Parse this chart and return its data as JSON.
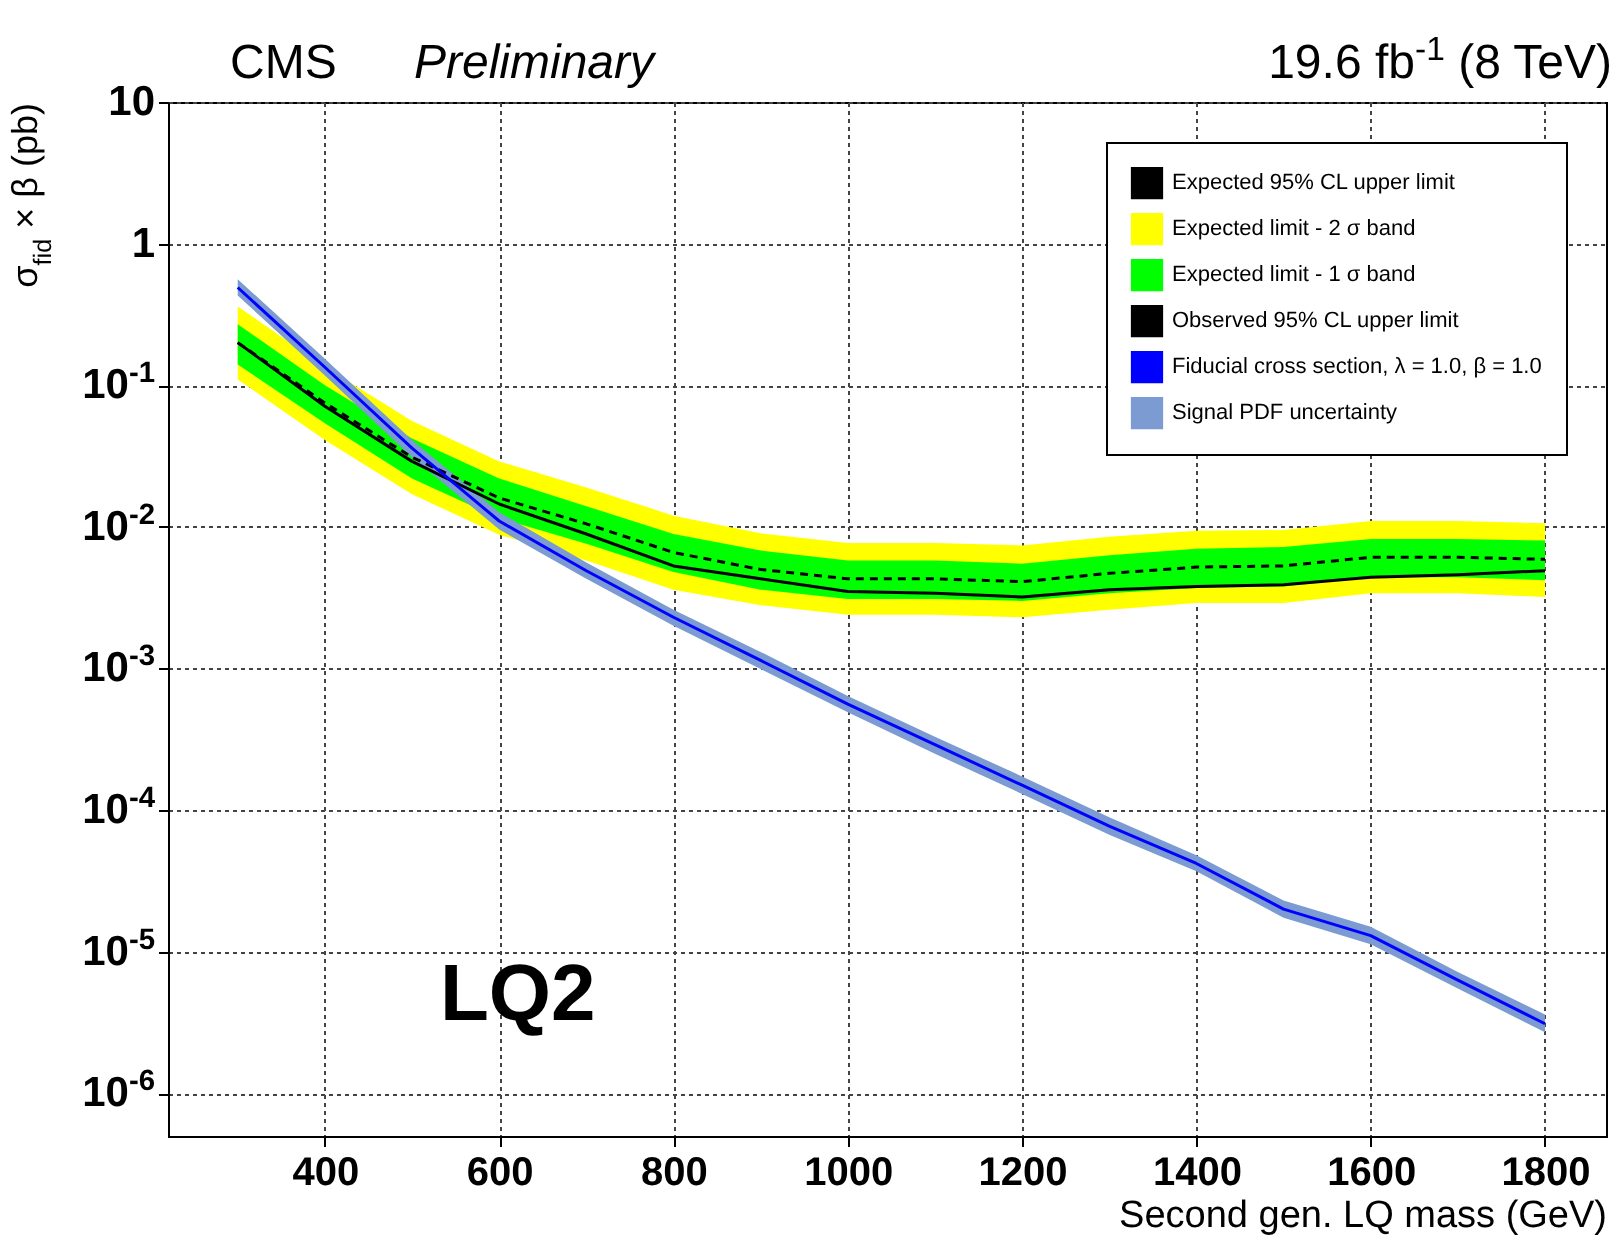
{
  "chart_data": {
    "type": "line",
    "title": "CMS",
    "xlabel": "Second gen. LQ mass (GeV)",
    "ylabel": "σ$_{fid}$ × β (pb)",
    "annotations": [
      "Preliminary",
      "19.6 fb$^{-1}$ (8 TeV)",
      "LQ2"
    ],
    "x": [
      300,
      400,
      500,
      600,
      700,
      800,
      900,
      1000,
      1100,
      1200,
      1300,
      1400,
      1500,
      1600,
      1700,
      1800
    ],
    "series": [
      {
        "name": "Expected 95% CL upper limit",
        "line_style": "dashed",
        "color": "#000000",
        "values": [
          0.2,
          0.075,
          0.031,
          0.016,
          0.0105,
          0.0066,
          0.005,
          0.0043,
          0.0043,
          0.0041,
          0.0047,
          0.0052,
          0.0053,
          0.0061,
          0.0061,
          0.0059
        ]
      },
      {
        "name": "Expected limit - 2 σ band",
        "color": "#ffff00",
        "values": [
          null,
          null,
          null,
          null,
          null,
          null,
          null,
          null,
          null,
          null,
          null,
          null,
          null,
          null,
          null,
          null
        ],
        "upper": [
          0.36,
          0.135,
          0.056,
          0.029,
          0.019,
          0.012,
          0.009,
          0.0077,
          0.0077,
          0.0074,
          0.0085,
          0.0094,
          0.0095,
          0.011,
          0.011,
          0.0106
        ],
        "lower": [
          0.11,
          0.041,
          0.017,
          0.0088,
          0.0058,
          0.0036,
          0.0028,
          0.0024,
          0.0024,
          0.0023,
          0.0026,
          0.0029,
          0.0029,
          0.0034,
          0.0034,
          0.0032
        ]
      },
      {
        "name": "Expected limit - 1 σ band",
        "color": "#00ff00",
        "values": [
          null,
          null,
          null,
          null,
          null,
          null,
          null,
          null,
          null,
          null,
          null,
          null,
          null,
          null,
          null,
          null
        ],
        "upper": [
          0.27,
          0.1,
          0.042,
          0.022,
          0.014,
          0.0089,
          0.0068,
          0.0058,
          0.0058,
          0.0055,
          0.0063,
          0.007,
          0.0072,
          0.0082,
          0.0082,
          0.008
        ],
        "lower": [
          0.14,
          0.054,
          0.022,
          0.0115,
          0.0076,
          0.0048,
          0.0036,
          0.0031,
          0.0031,
          0.003,
          0.0034,
          0.0037,
          0.0038,
          0.0044,
          0.0044,
          0.0042
        ]
      },
      {
        "name": "Observed 95% CL upper limit",
        "line_style": "solid",
        "color": "#000000",
        "values": [
          0.2,
          0.071,
          0.029,
          0.0145,
          0.0089,
          0.0053,
          0.0043,
          0.0035,
          0.0034,
          0.0032,
          0.0036,
          0.0038,
          0.0039,
          0.0044,
          0.0046,
          0.0049
        ]
      },
      {
        "name": "Fiducial cross section, λ = 1.0, β = 1.0",
        "line_style": "solid",
        "color": "#0000ff",
        "values": [
          0.49,
          0.134,
          0.036,
          0.011,
          0.0049,
          0.0023,
          0.00114,
          0.00056,
          0.00029,
          0.00015,
          7.7e-05,
          4.2e-05,
          2e-05,
          1.3e-05,
          6.3e-06,
          3.1e-06
        ]
      },
      {
        "name": "Signal PDF uncertainty",
        "color": "#7b9bd2",
        "values": [
          null,
          null,
          null,
          null,
          null,
          null,
          null,
          null,
          null,
          null,
          null,
          null,
          null,
          null,
          null,
          null
        ],
        "upper": [
          0.56,
          0.154,
          0.041,
          0.0127,
          0.0056,
          0.0026,
          0.00131,
          0.00064,
          0.00033,
          0.000173,
          8.9e-05,
          4.8e-05,
          2.3e-05,
          1.5e-05,
          7.2e-06,
          3.6e-06
        ],
        "lower": [
          0.43,
          0.117,
          0.031,
          0.0096,
          0.0043,
          0.002,
          0.00099,
          0.00049,
          0.00025,
          0.00013,
          6.7e-05,
          3.7e-05,
          1.74e-05,
          1.13e-05,
          5.5e-06,
          2.7e-06
        ]
      }
    ],
    "xlim": [
      220,
      1870
    ],
    "xticks": [
      400,
      600,
      800,
      1000,
      1200,
      1400,
      1600,
      1800
    ],
    "ylim": [
      5e-07,
      10
    ],
    "log": true,
    "yticks": [
      {
        "value": 1e-06,
        "label": "10$^{-6}$"
      },
      {
        "value": 1e-05,
        "label": "10$^{-5}$"
      },
      {
        "value": 0.0001,
        "label": "10$^{-4}$"
      },
      {
        "value": 0.001,
        "label": "10$^{-3}$"
      },
      {
        "value": 0.01,
        "label": "10$^{-2}$"
      },
      {
        "value": 0.1,
        "label": "10$^{-1}$"
      },
      1,
      10
    ],
    "grid": true,
    "legend": "top right"
  }
}
